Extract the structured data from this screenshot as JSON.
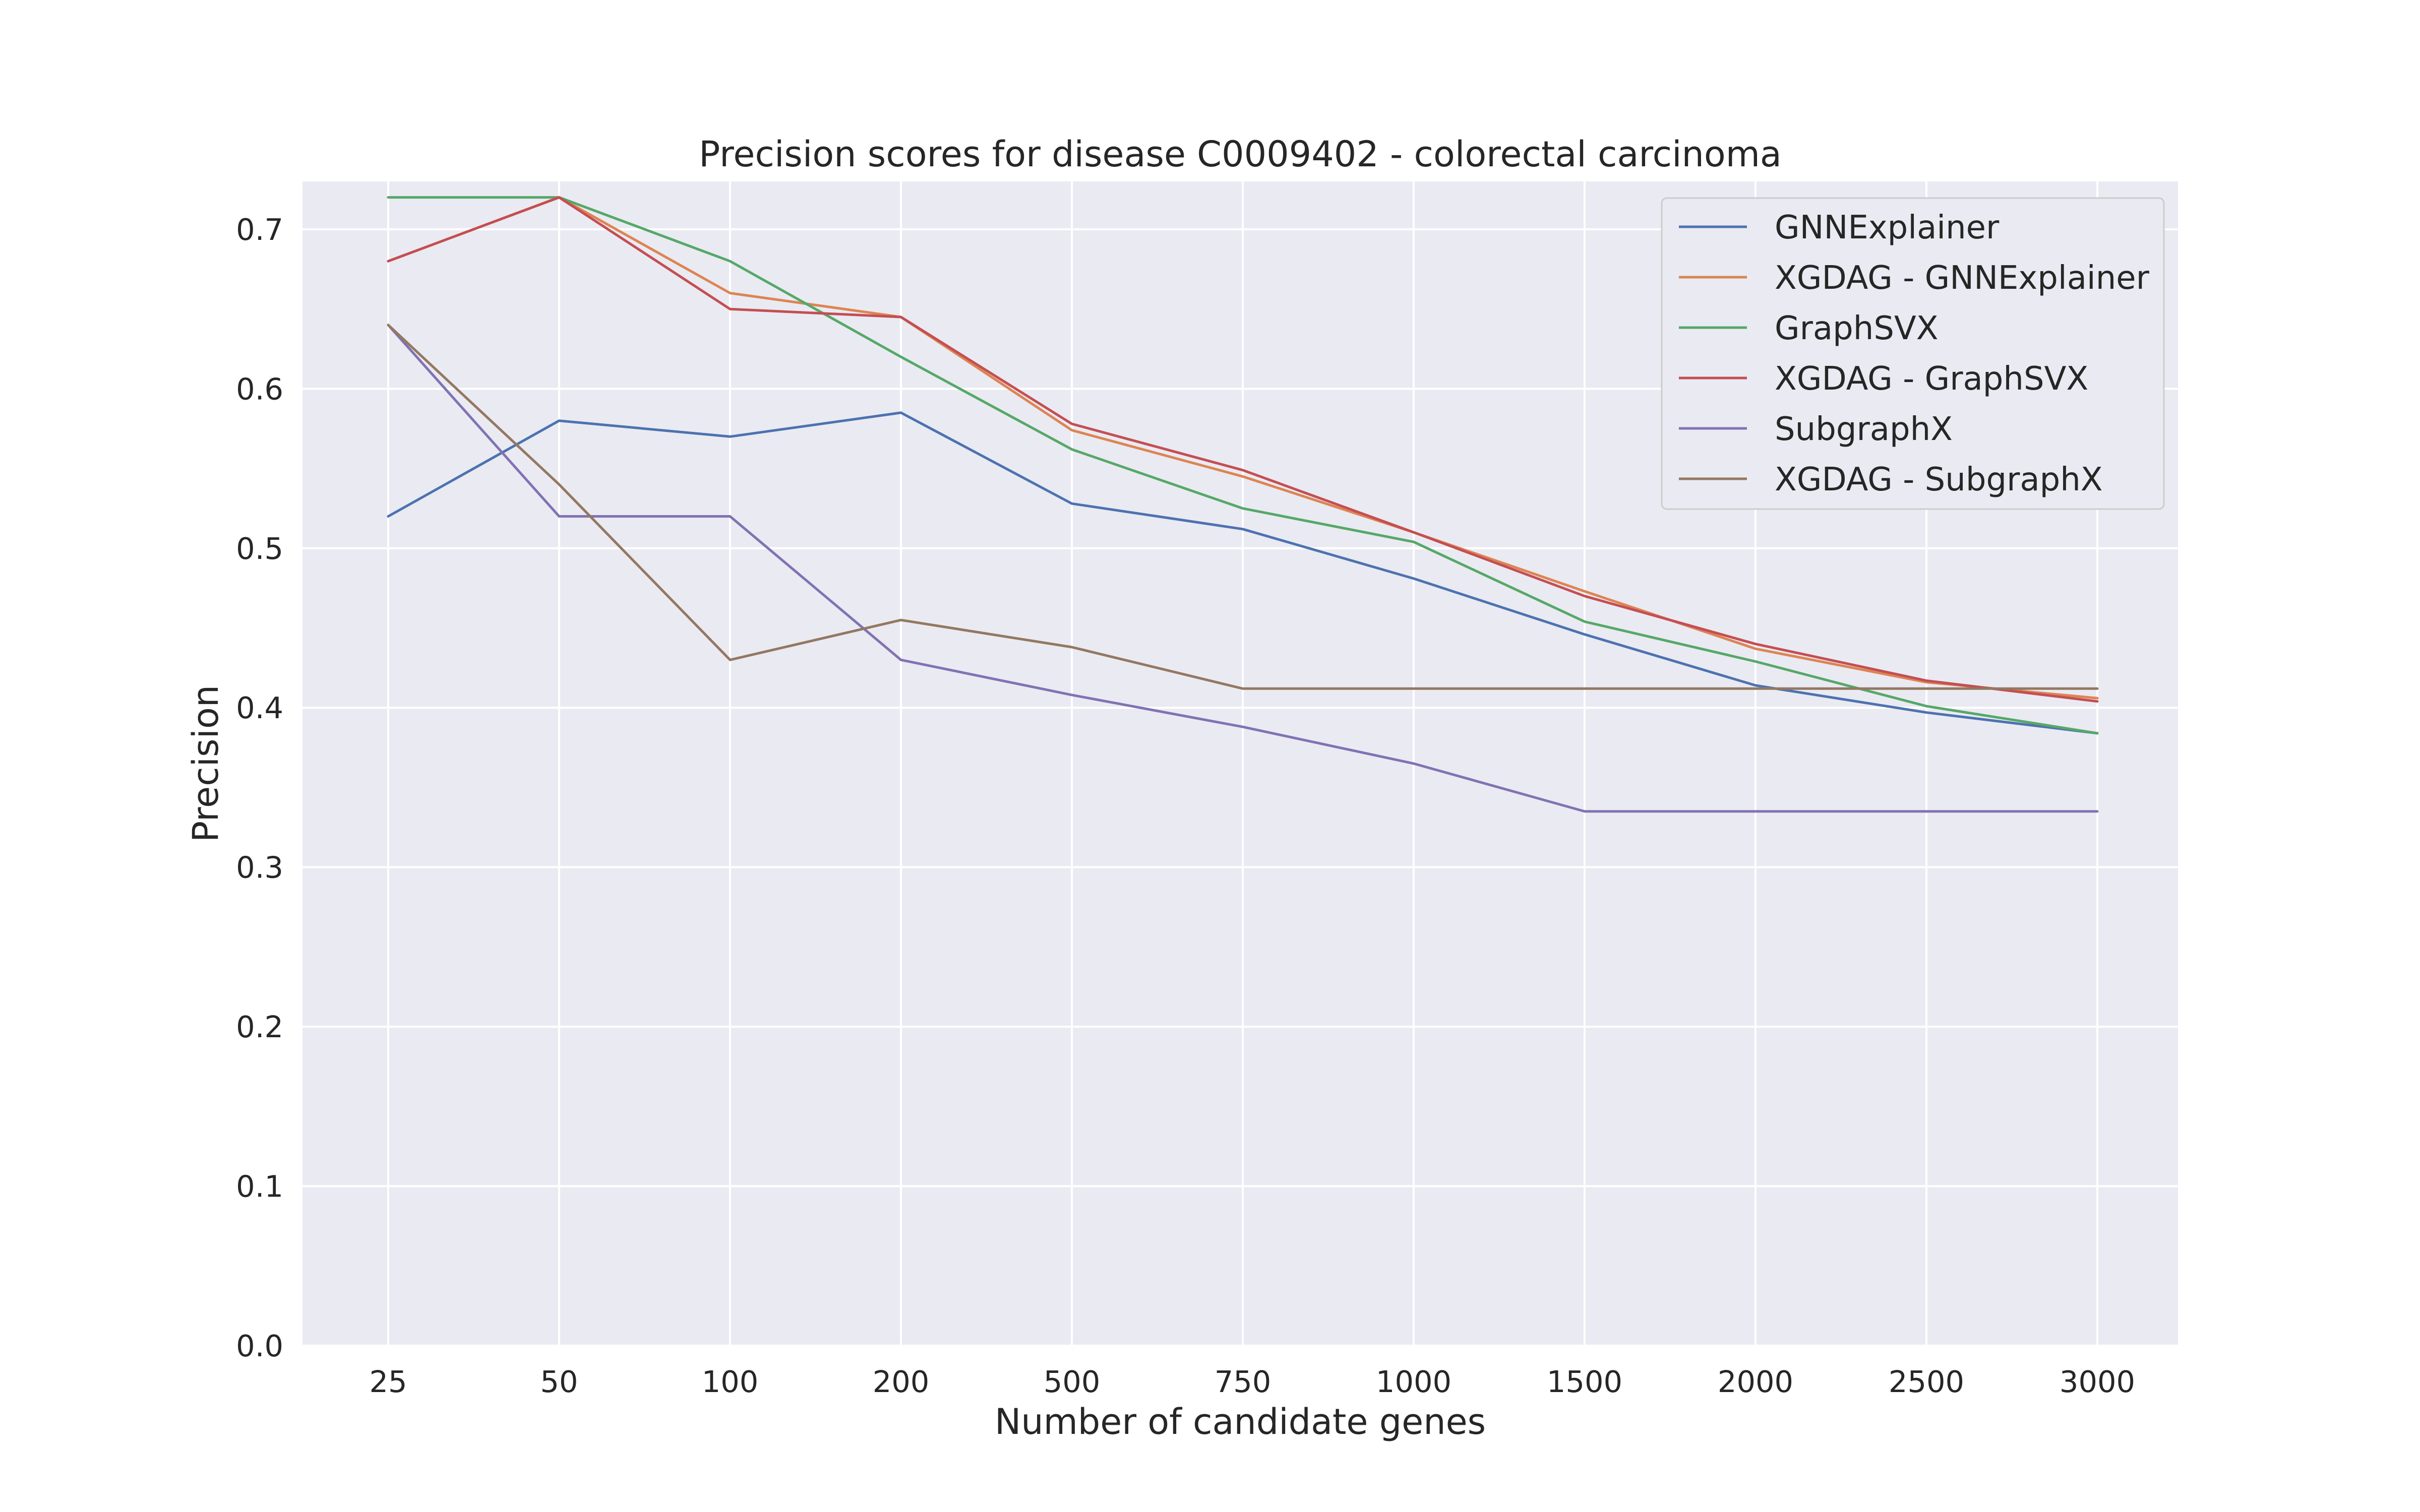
{
  "chart_data": {
    "type": "line",
    "title": "Precision scores for disease C0009402 - colorectal carcinoma",
    "xlabel": "Number of candidate genes",
    "ylabel": "Precision",
    "categories": [
      "25",
      "50",
      "100",
      "200",
      "500",
      "750",
      "1000",
      "1500",
      "2000",
      "2500",
      "3000"
    ],
    "ylim": [
      0.0,
      0.73
    ],
    "yticks": [
      "0.0",
      "0.1",
      "0.2",
      "0.3",
      "0.4",
      "0.5",
      "0.6",
      "0.7"
    ],
    "grid": true,
    "legend_position": "top-right",
    "series": [
      {
        "name": "GNNExplainer",
        "color": "#4c72b0",
        "values": [
          0.52,
          0.58,
          0.57,
          0.585,
          0.528,
          0.512,
          0.481,
          0.446,
          0.414,
          0.397,
          0.384
        ]
      },
      {
        "name": "XGDAG - GNNExplainer",
        "color": "#dd8452",
        "values": [
          0.68,
          0.72,
          0.66,
          0.645,
          0.574,
          0.545,
          0.51,
          0.473,
          0.437,
          0.416,
          0.406
        ]
      },
      {
        "name": "GraphSVX",
        "color": "#55a868",
        "values": [
          0.72,
          0.72,
          0.68,
          0.62,
          0.562,
          0.525,
          0.504,
          0.454,
          0.429,
          0.401,
          0.384
        ]
      },
      {
        "name": "XGDAG - GraphSVX",
        "color": "#c44e52",
        "values": [
          0.68,
          0.72,
          0.65,
          0.645,
          0.578,
          0.549,
          0.51,
          0.47,
          0.44,
          0.417,
          0.404
        ]
      },
      {
        "name": "SubgraphX",
        "color": "#8172b3",
        "values": [
          0.64,
          0.52,
          0.52,
          0.43,
          0.408,
          0.388,
          0.365,
          0.335,
          0.335,
          0.335,
          0.335
        ]
      },
      {
        "name": "XGDAG - SubgraphX",
        "color": "#937860",
        "values": [
          0.64,
          0.54,
          0.43,
          0.455,
          0.438,
          0.412,
          0.412,
          0.412,
          0.412,
          0.412,
          0.412
        ]
      }
    ]
  }
}
